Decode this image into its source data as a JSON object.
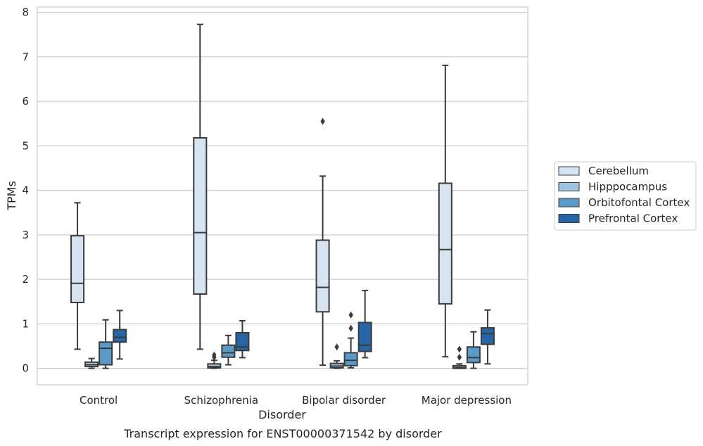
{
  "chart_data": {
    "type": "box",
    "title": "Transcript expression for ENST00000371542 by disorder",
    "xlabel": "Disorder",
    "ylabel": "TPMs",
    "categories": [
      "Control",
      "Schizophrenia",
      "Bipolar disorder",
      "Major depression"
    ],
    "yticks": [
      0,
      1,
      2,
      3,
      4,
      5,
      6,
      7,
      8
    ],
    "ylim": [
      -0.37,
      8.12
    ],
    "grid": true,
    "legend_position": "right",
    "series": [
      {
        "name": "Cerebellum",
        "color": "#d6e4f2",
        "boxes": [
          {
            "whislo": 0.43,
            "q1": 1.48,
            "med": 1.91,
            "q3": 2.98,
            "whishi": 3.72,
            "fliers": []
          },
          {
            "whislo": 0.43,
            "q1": 1.67,
            "med": 3.05,
            "q3": 5.18,
            "whishi": 7.73,
            "fliers": []
          },
          {
            "whislo": 0.07,
            "q1": 1.27,
            "med": 1.82,
            "q3": 2.88,
            "whishi": 4.32,
            "fliers": [
              5.55
            ]
          },
          {
            "whislo": 0.26,
            "q1": 1.45,
            "med": 2.67,
            "q3": 4.16,
            "whishi": 6.81,
            "fliers": []
          }
        ]
      },
      {
        "name": "Hipppocampus",
        "color": "#a0c4df",
        "boxes": [
          {
            "whislo": 0.0,
            "q1": 0.04,
            "med": 0.08,
            "q3": 0.14,
            "whishi": 0.22,
            "fliers": []
          },
          {
            "whislo": 0.0,
            "q1": 0.01,
            "med": 0.04,
            "q3": 0.1,
            "whishi": 0.18,
            "fliers": [
              0.25,
              0.3
            ]
          },
          {
            "whislo": 0.0,
            "q1": 0.01,
            "med": 0.05,
            "q3": 0.11,
            "whishi": 0.17,
            "fliers": [
              0.48
            ]
          },
          {
            "whislo": 0.0,
            "q1": 0.0,
            "med": 0.02,
            "q3": 0.06,
            "whishi": 0.1,
            "fliers": [
              0.25,
              0.43
            ]
          }
        ]
      },
      {
        "name": "Orbitofontal Cortex",
        "color": "#5a9bc9",
        "boxes": [
          {
            "whislo": 0.0,
            "q1": 0.08,
            "med": 0.45,
            "q3": 0.59,
            "whishi": 1.09,
            "fliers": []
          },
          {
            "whislo": 0.08,
            "q1": 0.25,
            "med": 0.35,
            "q3": 0.52,
            "whishi": 0.74,
            "fliers": []
          },
          {
            "whislo": 0.01,
            "q1": 0.06,
            "med": 0.18,
            "q3": 0.35,
            "whishi": 0.68,
            "fliers": [
              0.9,
              1.2
            ]
          },
          {
            "whislo": 0.0,
            "q1": 0.13,
            "med": 0.24,
            "q3": 0.48,
            "whishi": 0.82,
            "fliers": []
          }
        ]
      },
      {
        "name": "Prefrontal Cortex",
        "color": "#2666a6",
        "boxes": [
          {
            "whislo": 0.21,
            "q1": 0.59,
            "med": 0.7,
            "q3": 0.87,
            "whishi": 1.3,
            "fliers": []
          },
          {
            "whislo": 0.24,
            "q1": 0.4,
            "med": 0.48,
            "q3": 0.8,
            "whishi": 1.07,
            "fliers": []
          },
          {
            "whislo": 0.24,
            "q1": 0.38,
            "med": 0.52,
            "q3": 1.03,
            "whishi": 1.75,
            "fliers": []
          },
          {
            "whislo": 0.1,
            "q1": 0.54,
            "med": 0.78,
            "q3": 0.91,
            "whishi": 1.31,
            "fliers": []
          }
        ]
      }
    ]
  }
}
